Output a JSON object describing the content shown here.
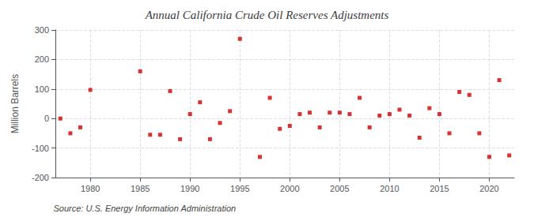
{
  "chart_data": {
    "type": "scatter",
    "title": "Annual California Crude Oil Reserves Adjustments",
    "ylabel": "Million Barrels",
    "annotation": "Source: U.S. Energy Information Administration",
    "x": [
      1977,
      1978,
      1979,
      1980,
      1985,
      1986,
      1987,
      1988,
      1989,
      1990,
      1991,
      1992,
      1993,
      1994,
      1995,
      1997,
      1998,
      1999,
      2000,
      2001,
      2002,
      2003,
      2004,
      2005,
      2006,
      2007,
      2008,
      2009,
      2010,
      2011,
      2012,
      2013,
      2014,
      2015,
      2016,
      2017,
      2018,
      2019,
      2020,
      2021,
      2022
    ],
    "values": [
      0,
      -50,
      -30,
      97,
      160,
      -55,
      -55,
      93,
      -70,
      15,
      55,
      -70,
      -15,
      25,
      270,
      -130,
      70,
      -35,
      -25,
      15,
      20,
      -30,
      20,
      20,
      15,
      70,
      -30,
      10,
      15,
      30,
      10,
      -65,
      35,
      15,
      -50,
      90,
      80,
      -50,
      -130,
      130,
      -125
    ],
    "xlim": [
      1976.5,
      2022.5
    ],
    "xticks": [
      1980,
      1985,
      1990,
      1995,
      2000,
      2005,
      2010,
      2015,
      2020
    ],
    "ylim": [
      -200,
      300
    ],
    "yticks": [
      -200,
      -100,
      0,
      100,
      200,
      300
    ],
    "color": "#cc0000",
    "marker": "square",
    "grid": true
  }
}
